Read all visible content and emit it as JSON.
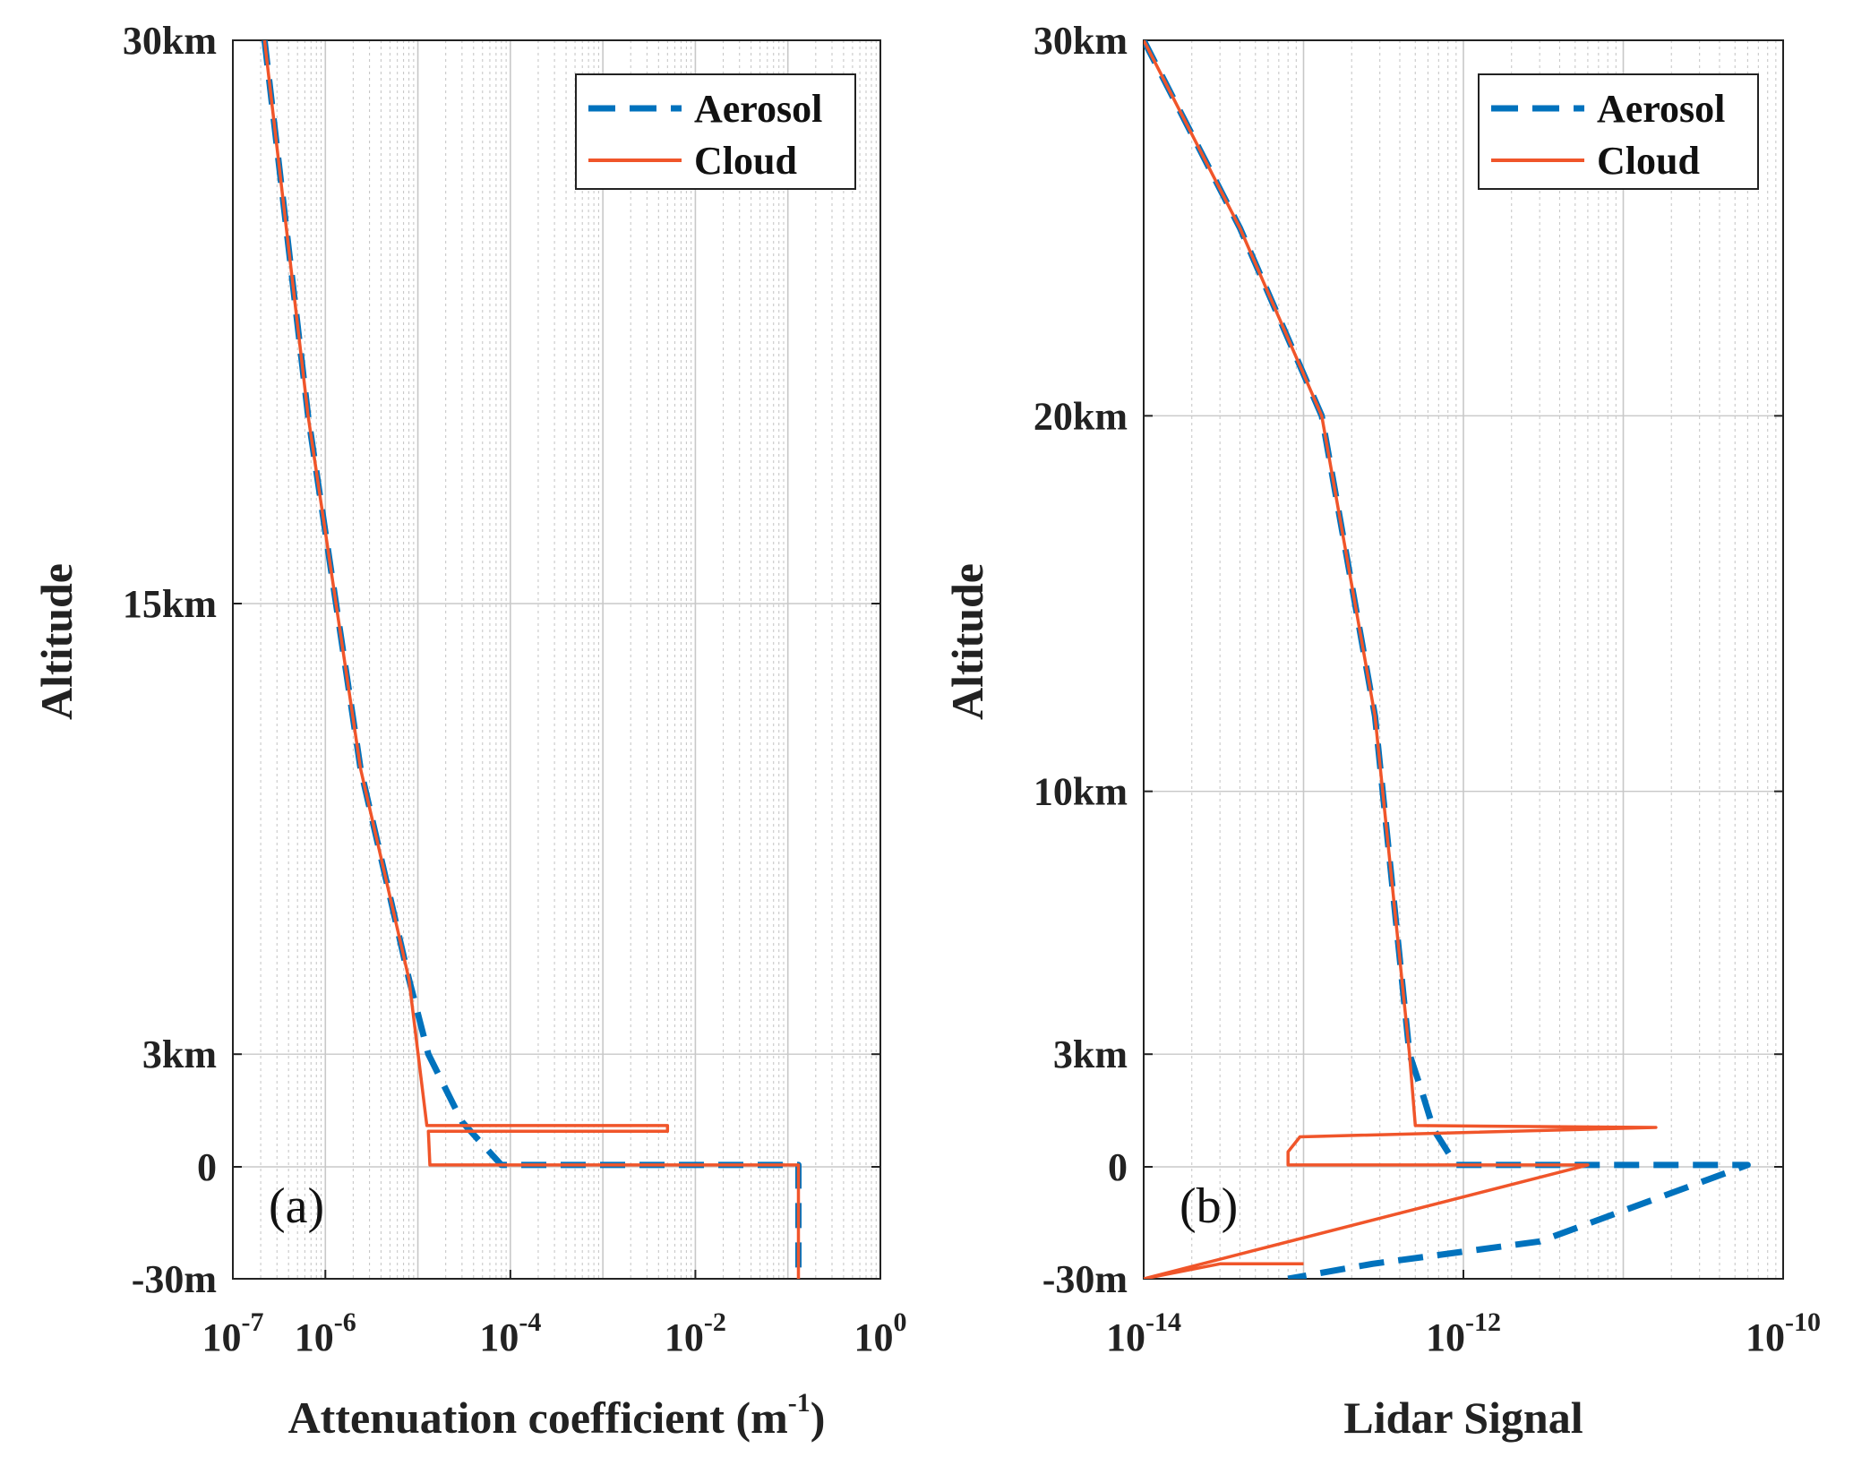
{
  "colors": {
    "aerosol": "#0072BD",
    "cloud": "#F0552A",
    "grid": "#c8c8c8",
    "axis": "#222222"
  },
  "chart_data": [
    {
      "type": "line",
      "panel_label": "(a)",
      "xlabel_main": "Attenuation coefficient (m",
      "xlabel_sup": "-1",
      "xlabel_end": ")",
      "ylabel": "Altitude",
      "xscale": "log",
      "xlim": [
        1e-07,
        1
      ],
      "x_ticks": [
        {
          "value": 1e-07,
          "base": "10",
          "exp": "-7"
        },
        {
          "value": 1e-06,
          "base": "10",
          "exp": "-6"
        },
        {
          "value": 0.0001,
          "base": "10",
          "exp": "-4"
        },
        {
          "value": 0.01,
          "base": "10",
          "exp": "-2"
        },
        {
          "value": 1,
          "base": "10",
          "exp": "0"
        }
      ],
      "y_ticks": [
        {
          "value": 30,
          "label": "30km"
        },
        {
          "value": 15,
          "label": "15km"
        },
        {
          "value": 3,
          "label": "3km"
        },
        {
          "value": 0,
          "label": "0"
        },
        {
          "value": -3,
          "label": "-30m"
        }
      ],
      "y_note": "altitude axis is piecewise: -30 m to 0 m, then 0 to 30 km",
      "legend": {
        "position": "top-right",
        "entries": [
          "Aerosol",
          "Cloud"
        ]
      },
      "series": [
        {
          "name": "Aerosol",
          "style": "dashed",
          "points": [
            [
              2.2e-07,
              30
            ],
            [
              6.5e-07,
              20
            ],
            [
              2.4e-06,
              10.6
            ],
            [
              8e-06,
              5
            ],
            [
              1.3e-05,
              3
            ],
            [
              3e-05,
              1.2
            ],
            [
              8e-05,
              0.05
            ],
            [
              0.13,
              0.05
            ],
            [
              0.13,
              -3
            ]
          ]
        },
        {
          "name": "Cloud",
          "style": "solid",
          "points": [
            [
              2.2e-07,
              30
            ],
            [
              6.5e-07,
              20
            ],
            [
              2.4e-06,
              10.6
            ],
            [
              8e-06,
              5
            ],
            [
              1.25e-05,
              1.1
            ],
            [
              0.005,
              1.1
            ],
            [
              0.005,
              0.95
            ],
            [
              1.3e-05,
              0.95
            ],
            [
              1.35e-05,
              0.05
            ],
            [
              0.13,
              0.05
            ],
            [
              0.13,
              -3
            ]
          ]
        }
      ]
    },
    {
      "type": "line",
      "panel_label": "(b)",
      "xlabel": "Lidar Signal",
      "ylabel": "Altitude",
      "xscale": "log",
      "xlim": [
        1e-14,
        1e-10
      ],
      "x_ticks": [
        {
          "value": 1e-14,
          "base": "10",
          "exp": "-14"
        },
        {
          "value": 1e-12,
          "base": "10",
          "exp": "-12"
        },
        {
          "value": 1e-10,
          "base": "10",
          "exp": "-10"
        }
      ],
      "y_ticks": [
        {
          "value": 30,
          "label": "30km"
        },
        {
          "value": 20,
          "label": "20km"
        },
        {
          "value": 10,
          "label": "10km"
        },
        {
          "value": 3,
          "label": "3km"
        },
        {
          "value": 0,
          "label": "0"
        },
        {
          "value": -3,
          "label": "-30m"
        }
      ],
      "legend": {
        "position": "top-right",
        "entries": [
          "Aerosol",
          "Cloud"
        ]
      },
      "series": [
        {
          "name": "Aerosol",
          "style": "dashed",
          "points": [
            [
              1e-14,
              30
            ],
            [
              4e-14,
              25
            ],
            [
              1.3e-13,
              20
            ],
            [
              2.8e-13,
              12
            ],
            [
              4.6e-13,
              3
            ],
            [
              5.5e-13,
              2
            ],
            [
              6.5e-13,
              1
            ],
            [
              9e-13,
              0.05
            ],
            [
              6e-11,
              0.05
            ],
            [
              3e-12,
              -2
            ],
            [
              2.7e-13,
              -2.6
            ],
            [
              8e-14,
              -3
            ]
          ]
        },
        {
          "name": "Cloud",
          "style": "solid",
          "points": [
            [
              1e-14,
              30
            ],
            [
              4e-14,
              25
            ],
            [
              1.3e-13,
              20
            ],
            [
              2.8e-13,
              12
            ],
            [
              4.6e-13,
              3
            ],
            [
              5e-13,
              1.1
            ],
            [
              1.6e-11,
              1.05
            ],
            [
              9.5e-14,
              0.8
            ],
            [
              8e-14,
              0.4
            ],
            [
              8e-14,
              0.05
            ],
            [
              6e-12,
              0.05
            ],
            [
              1e-14,
              -3
            ],
            [
              3e-14,
              -2.6
            ],
            [
              1e-13,
              -2.6
            ]
          ]
        }
      ]
    }
  ]
}
